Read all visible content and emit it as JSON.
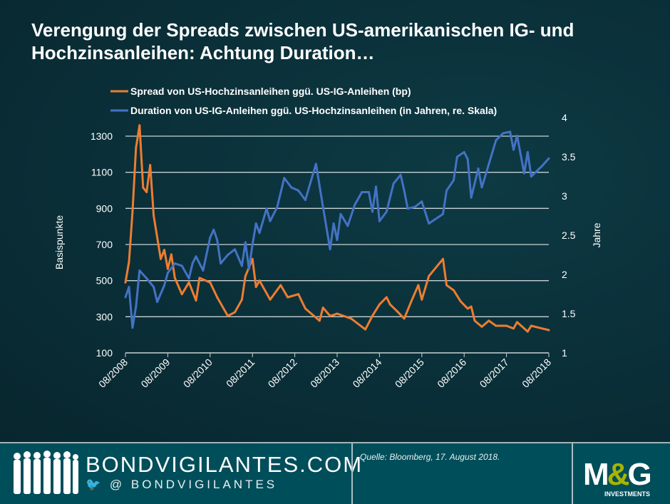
{
  "title": "Verengung der Spreads zwischen US-amerikanischen IG- und Hochzinsanleihen: Achtung Duration…",
  "footer": {
    "brand": "BONDVIGILANTES.COM",
    "handle": "@ BONDVIGILANTES",
    "source": "Quelle:  Bloomberg, 17. August 2018.",
    "logo_text": "M&G",
    "logo_sub": "INVESTMENTS"
  },
  "chart_data": {
    "type": "line",
    "ylabel": "Basispunkte",
    "y2label": "Jahre",
    "ylim": [
      100,
      1300
    ],
    "y2lim": [
      1,
      4
    ],
    "yticks": [
      "100",
      "300",
      "500",
      "700",
      "900",
      "1100",
      "1300"
    ],
    "y2ticks": [
      "1",
      "1.5",
      "2",
      "2.5",
      "3",
      "3.5",
      "4"
    ],
    "xticks": [
      "08/2008",
      "08/2009",
      "08/2010",
      "08/2011",
      "08/2012",
      "08/2013",
      "08/2014",
      "08/2015",
      "08/2016",
      "08/2017",
      "08/2018"
    ],
    "grid": true,
    "legend_position": "top",
    "series": [
      {
        "name": "Spread von US-Hochzinsanleihen ggü. US-IG-Anleihen (bp)",
        "axis": "left",
        "color": "#ed7d31",
        "points": [
          [
            "2008-08",
            490
          ],
          [
            "2008-09",
            605
          ],
          [
            "2008-10",
            880
          ],
          [
            "2008-11",
            1236
          ],
          [
            "2008-12",
            1360
          ],
          [
            "2009-01",
            1015
          ],
          [
            "2009-02",
            990
          ],
          [
            "2009-03",
            1140
          ],
          [
            "2009-04",
            860
          ],
          [
            "2009-06",
            620
          ],
          [
            "2009-07",
            670
          ],
          [
            "2009-08",
            565
          ],
          [
            "2009-09",
            645
          ],
          [
            "2009-10",
            515
          ],
          [
            "2009-12",
            425
          ],
          [
            "2010-02",
            490
          ],
          [
            "2010-04",
            390
          ],
          [
            "2010-05",
            515
          ],
          [
            "2010-08",
            490
          ],
          [
            "2010-10",
            408
          ],
          [
            "2011-01",
            305
          ],
          [
            "2011-03",
            325
          ],
          [
            "2011-05",
            395
          ],
          [
            "2011-06",
            525
          ],
          [
            "2011-08",
            620
          ],
          [
            "2011-09",
            465
          ],
          [
            "2011-10",
            500
          ],
          [
            "2012-01",
            395
          ],
          [
            "2012-04",
            475
          ],
          [
            "2012-06",
            408
          ],
          [
            "2012-09",
            425
          ],
          [
            "2012-11",
            345
          ],
          [
            "2013-03",
            278
          ],
          [
            "2013-04",
            350
          ],
          [
            "2013-06",
            305
          ],
          [
            "2013-07",
            310
          ],
          [
            "2013-08",
            317
          ],
          [
            "2013-12",
            290
          ],
          [
            "2014-04",
            230
          ],
          [
            "2014-06",
            305
          ],
          [
            "2014-08",
            368
          ],
          [
            "2014-10",
            408
          ],
          [
            "2014-11",
            368
          ],
          [
            "2015-01",
            330
          ],
          [
            "2015-03",
            290
          ],
          [
            "2015-05",
            385
          ],
          [
            "2015-07",
            475
          ],
          [
            "2015-08",
            395
          ],
          [
            "2015-10",
            525
          ],
          [
            "2016-02",
            620
          ],
          [
            "2016-03",
            475
          ],
          [
            "2016-05",
            447
          ],
          [
            "2016-07",
            385
          ],
          [
            "2016-09",
            345
          ],
          [
            "2016-10",
            356
          ],
          [
            "2016-11",
            278
          ],
          [
            "2017-01",
            245
          ],
          [
            "2017-03",
            278
          ],
          [
            "2017-05",
            250
          ],
          [
            "2017-08",
            250
          ],
          [
            "2017-10",
            235
          ],
          [
            "2017-11",
            270
          ],
          [
            "2018-02",
            218
          ],
          [
            "2018-03",
            250
          ],
          [
            "2018-08",
            226
          ]
        ]
      },
      {
        "name": "Duration von US-IG-Anleihen ggü. US-Hochzinsanleihen (in Jahren, re. Skala)",
        "axis": "right",
        "color": "#4472c4",
        "points": [
          [
            "2008-08",
            1.71
          ],
          [
            "2008-09",
            1.84
          ],
          [
            "2008-10",
            1.32
          ],
          [
            "2008-11",
            1.59
          ],
          [
            "2008-12",
            2.05
          ],
          [
            "2009-02",
            1.95
          ],
          [
            "2009-04",
            1.84
          ],
          [
            "2009-05",
            1.65
          ],
          [
            "2009-07",
            1.86
          ],
          [
            "2009-08",
            2.02
          ],
          [
            "2009-10",
            2.14
          ],
          [
            "2009-12",
            2.11
          ],
          [
            "2010-02",
            1.95
          ],
          [
            "2010-03",
            2.14
          ],
          [
            "2010-04",
            2.23
          ],
          [
            "2010-06",
            2.05
          ],
          [
            "2010-08",
            2.47
          ],
          [
            "2010-09",
            2.57
          ],
          [
            "2010-10",
            2.44
          ],
          [
            "2010-11",
            2.14
          ],
          [
            "2011-01",
            2.25
          ],
          [
            "2011-03",
            2.32
          ],
          [
            "2011-05",
            2.11
          ],
          [
            "2011-06",
            2.41
          ],
          [
            "2011-07",
            2.07
          ],
          [
            "2011-08",
            2.38
          ],
          [
            "2011-09",
            2.65
          ],
          [
            "2011-10",
            2.53
          ],
          [
            "2011-12",
            2.84
          ],
          [
            "2012-01",
            2.68
          ],
          [
            "2012-03",
            2.86
          ],
          [
            "2012-05",
            3.23
          ],
          [
            "2012-07",
            3.11
          ],
          [
            "2012-09",
            3.07
          ],
          [
            "2012-11",
            2.95
          ],
          [
            "2013-02",
            3.41
          ],
          [
            "2013-04",
            2.86
          ],
          [
            "2013-06",
            2.32
          ],
          [
            "2013-07",
            2.65
          ],
          [
            "2013-08",
            2.44
          ],
          [
            "2013-09",
            2.77
          ],
          [
            "2013-11",
            2.62
          ],
          [
            "2014-01",
            2.89
          ],
          [
            "2014-03",
            3.05
          ],
          [
            "2014-05",
            3.05
          ],
          [
            "2014-06",
            2.8
          ],
          [
            "2014-07",
            3.12
          ],
          [
            "2014-08",
            2.68
          ],
          [
            "2014-10",
            2.8
          ],
          [
            "2014-12",
            3.16
          ],
          [
            "2015-02",
            3.27
          ],
          [
            "2015-03",
            3.07
          ],
          [
            "2015-04",
            2.84
          ],
          [
            "2015-06",
            2.86
          ],
          [
            "2015-08",
            2.93
          ],
          [
            "2015-10",
            2.65
          ],
          [
            "2016-02",
            2.77
          ],
          [
            "2016-03",
            3.07
          ],
          [
            "2016-05",
            3.2
          ],
          [
            "2016-06",
            3.5
          ],
          [
            "2016-08",
            3.56
          ],
          [
            "2016-09",
            3.47
          ],
          [
            "2016-10",
            2.98
          ],
          [
            "2016-12",
            3.35
          ],
          [
            "2017-01",
            3.11
          ],
          [
            "2017-03",
            3.41
          ],
          [
            "2017-05",
            3.71
          ],
          [
            "2017-07",
            3.8
          ],
          [
            "2017-09",
            3.82
          ],
          [
            "2017-10",
            3.59
          ],
          [
            "2017-11",
            3.77
          ],
          [
            "2018-01",
            3.29
          ],
          [
            "2018-02",
            3.56
          ],
          [
            "2018-03",
            3.25
          ],
          [
            "2018-06",
            3.38
          ],
          [
            "2018-08",
            3.48
          ]
        ]
      }
    ]
  }
}
